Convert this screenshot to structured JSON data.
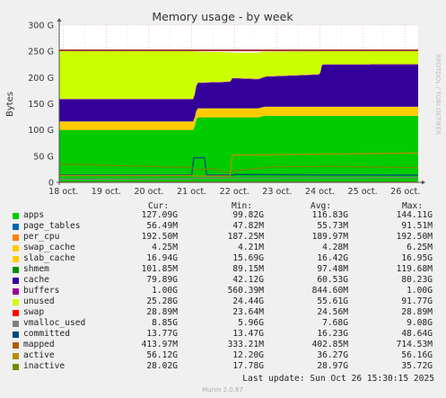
{
  "chart_data": {
    "type": "area",
    "title": "Memory usage - by week",
    "ylabel": "Bytes",
    "xlabel": "",
    "side_label": "RRDTOOL / TOBI OETIKER",
    "footer": "Munin 2.0.67",
    "last_update": "Last update:  Sun Oct 26 15:30:15 2025",
    "ylim": [
      0,
      300
    ],
    "y_unit": "G",
    "y_ticks": [
      "0",
      "50 G",
      "100 G",
      "150 G",
      "200 G",
      "250 G",
      "300 G"
    ],
    "x_ticks": [
      "18 oct.",
      "19 oct.",
      "20 oct.",
      "21 oct.",
      "22 oct.",
      "23 oct.",
      "24 oct.",
      "25 oct.",
      "26 oct."
    ],
    "x_range_days": [
      17.9,
      26.3
    ],
    "grid": true,
    "legend_columns": [
      "Cur:",
      "Min:",
      "Avg:",
      "Max:"
    ],
    "stack_order": [
      "apps",
      "page_tables",
      "per_cpu",
      "swap_cache",
      "slab_cache",
      "shmem",
      "cache",
      "buffers",
      "unused"
    ],
    "series": [
      {
        "name": "apps",
        "color": "#00cc00",
        "cur": "127.09G",
        "min": "99.82G",
        "avg": "116.83G",
        "max": "144.11G",
        "x": [
          17.9,
          21.05,
          21.12,
          22.55,
          22.7,
          26.3
        ],
        "values": [
          100,
          100,
          124,
          124,
          127,
          127
        ]
      },
      {
        "name": "page_tables",
        "color": "#0066b3",
        "cur": "56.49M",
        "min": "47.82M",
        "avg": "55.73M",
        "max": "91.51M",
        "x": [
          17.9,
          26.3
        ],
        "values": [
          0.05,
          0.05
        ]
      },
      {
        "name": "per_cpu",
        "color": "#ff8000",
        "cur": "192.50M",
        "min": "187.25M",
        "avg": "189.97M",
        "max": "192.50M",
        "x": [
          17.9,
          26.3
        ],
        "values": [
          0.19,
          0.19
        ]
      },
      {
        "name": "swap_cache",
        "color": "#ffcc00",
        "cur": "4.25M",
        "min": "4.21M",
        "avg": "4.28M",
        "max": "6.25M",
        "x": [
          17.9,
          26.3
        ],
        "values": [
          0.004,
          0.004
        ]
      },
      {
        "name": "slab_cache",
        "color": "#ffcc00",
        "cur": "16.94G",
        "min": "15.69G",
        "avg": "16.42G",
        "max": "16.95G",
        "x": [
          17.9,
          21.05,
          21.12,
          26.3
        ],
        "values": [
          16,
          16,
          17,
          17
        ]
      },
      {
        "name": "shmem",
        "color": "#008f00",
        "cur": "101.85M",
        "min": "89.15M",
        "avg": "97.48M",
        "max": "119.68M",
        "x": [
          17.9,
          26.3
        ],
        "values": [
          0.1,
          0.1
        ]
      },
      {
        "name": "cache",
        "color": "#330099",
        "cur": "79.89G",
        "min": "42.12G",
        "avg": "60.53G",
        "max": "80.23G",
        "x": [
          17.9,
          21.05,
          21.12,
          21.9,
          21.95,
          22.6,
          22.75,
          24.0,
          24.05,
          26.3
        ],
        "values": [
          42,
          42,
          48,
          50,
          57,
          55,
          57,
          61,
          80,
          80
        ]
      },
      {
        "name": "buffers",
        "color": "#990099",
        "cur": "1.00G",
        "min": "560.39M",
        "avg": "844.60M",
        "max": "1.00G",
        "x": [
          17.9,
          26.3
        ],
        "values": [
          0.8,
          1.0
        ]
      },
      {
        "name": "unused",
        "color": "#ccff00",
        "cur": "25.28G",
        "min": "24.44G",
        "avg": "55.61G",
        "max": "91.77G",
        "x": [
          17.9,
          21.05,
          21.12,
          21.9,
          21.95,
          22.6,
          22.75,
          24.0,
          24.05,
          26.3
        ],
        "values": [
          91.2,
          91.2,
          59,
          56,
          48,
          50,
          47,
          44,
          25.2,
          25.2
        ]
      },
      {
        "name": "swap",
        "color": "#ff0000",
        "cur": "28.89M",
        "min": "23.64M",
        "avg": "24.56M",
        "max": "28.89M",
        "line": false
      },
      {
        "name": "vmalloc_used",
        "color": "#808080",
        "cur": "8.85G",
        "min": "5.96G",
        "avg": "7.68G",
        "max": "9.08G",
        "x": [
          17.9,
          21.0,
          21.1,
          26.3
        ],
        "values": [
          6,
          6.5,
          8,
          8.9
        ]
      },
      {
        "name": "committed",
        "color": "#00487d",
        "cur": "13.77G",
        "min": "13.47G",
        "avg": "16.23G",
        "max": "48.64G",
        "x": [
          17.9,
          21.0,
          21.05,
          21.3,
          21.35,
          21.95,
          22.0,
          26.3
        ],
        "values": [
          14,
          14,
          47,
          47,
          14,
          14,
          15,
          13.8
        ]
      },
      {
        "name": "mapped",
        "color": "#b35a00",
        "cur": "413.97M",
        "min": "333.21M",
        "avg": "402.85M",
        "max": "714.53M",
        "x": [
          17.9,
          26.3
        ],
        "values": [
          0.4,
          0.41
        ]
      },
      {
        "name": "active",
        "color": "#b38f00",
        "cur": "56.12G",
        "min": "12.20G",
        "avg": "36.27G",
        "max": "56.16G",
        "x": [
          17.9,
          21.0,
          21.05,
          21.9,
          21.95,
          26.3
        ],
        "values": [
          13,
          13,
          12.2,
          12.2,
          52,
          56
        ]
      },
      {
        "name": "inactive",
        "color": "#6b8e00",
        "cur": "28.02G",
        "min": "17.78G",
        "avg": "28.97G",
        "max": "35.72G",
        "x": [
          17.9,
          18.5,
          19.0,
          20.0,
          20.5,
          21.0,
          21.05,
          21.5,
          21.9,
          22.0,
          22.3,
          23.0,
          24.0,
          24.1,
          25.0,
          26.3
        ],
        "values": [
          35,
          34,
          32.5,
          30.5,
          29,
          29,
          24,
          26,
          18,
          22,
          25,
          30,
          30,
          31,
          29.5,
          28
        ]
      }
    ],
    "total_line": {
      "color": "#880000",
      "value": 252
    }
  }
}
